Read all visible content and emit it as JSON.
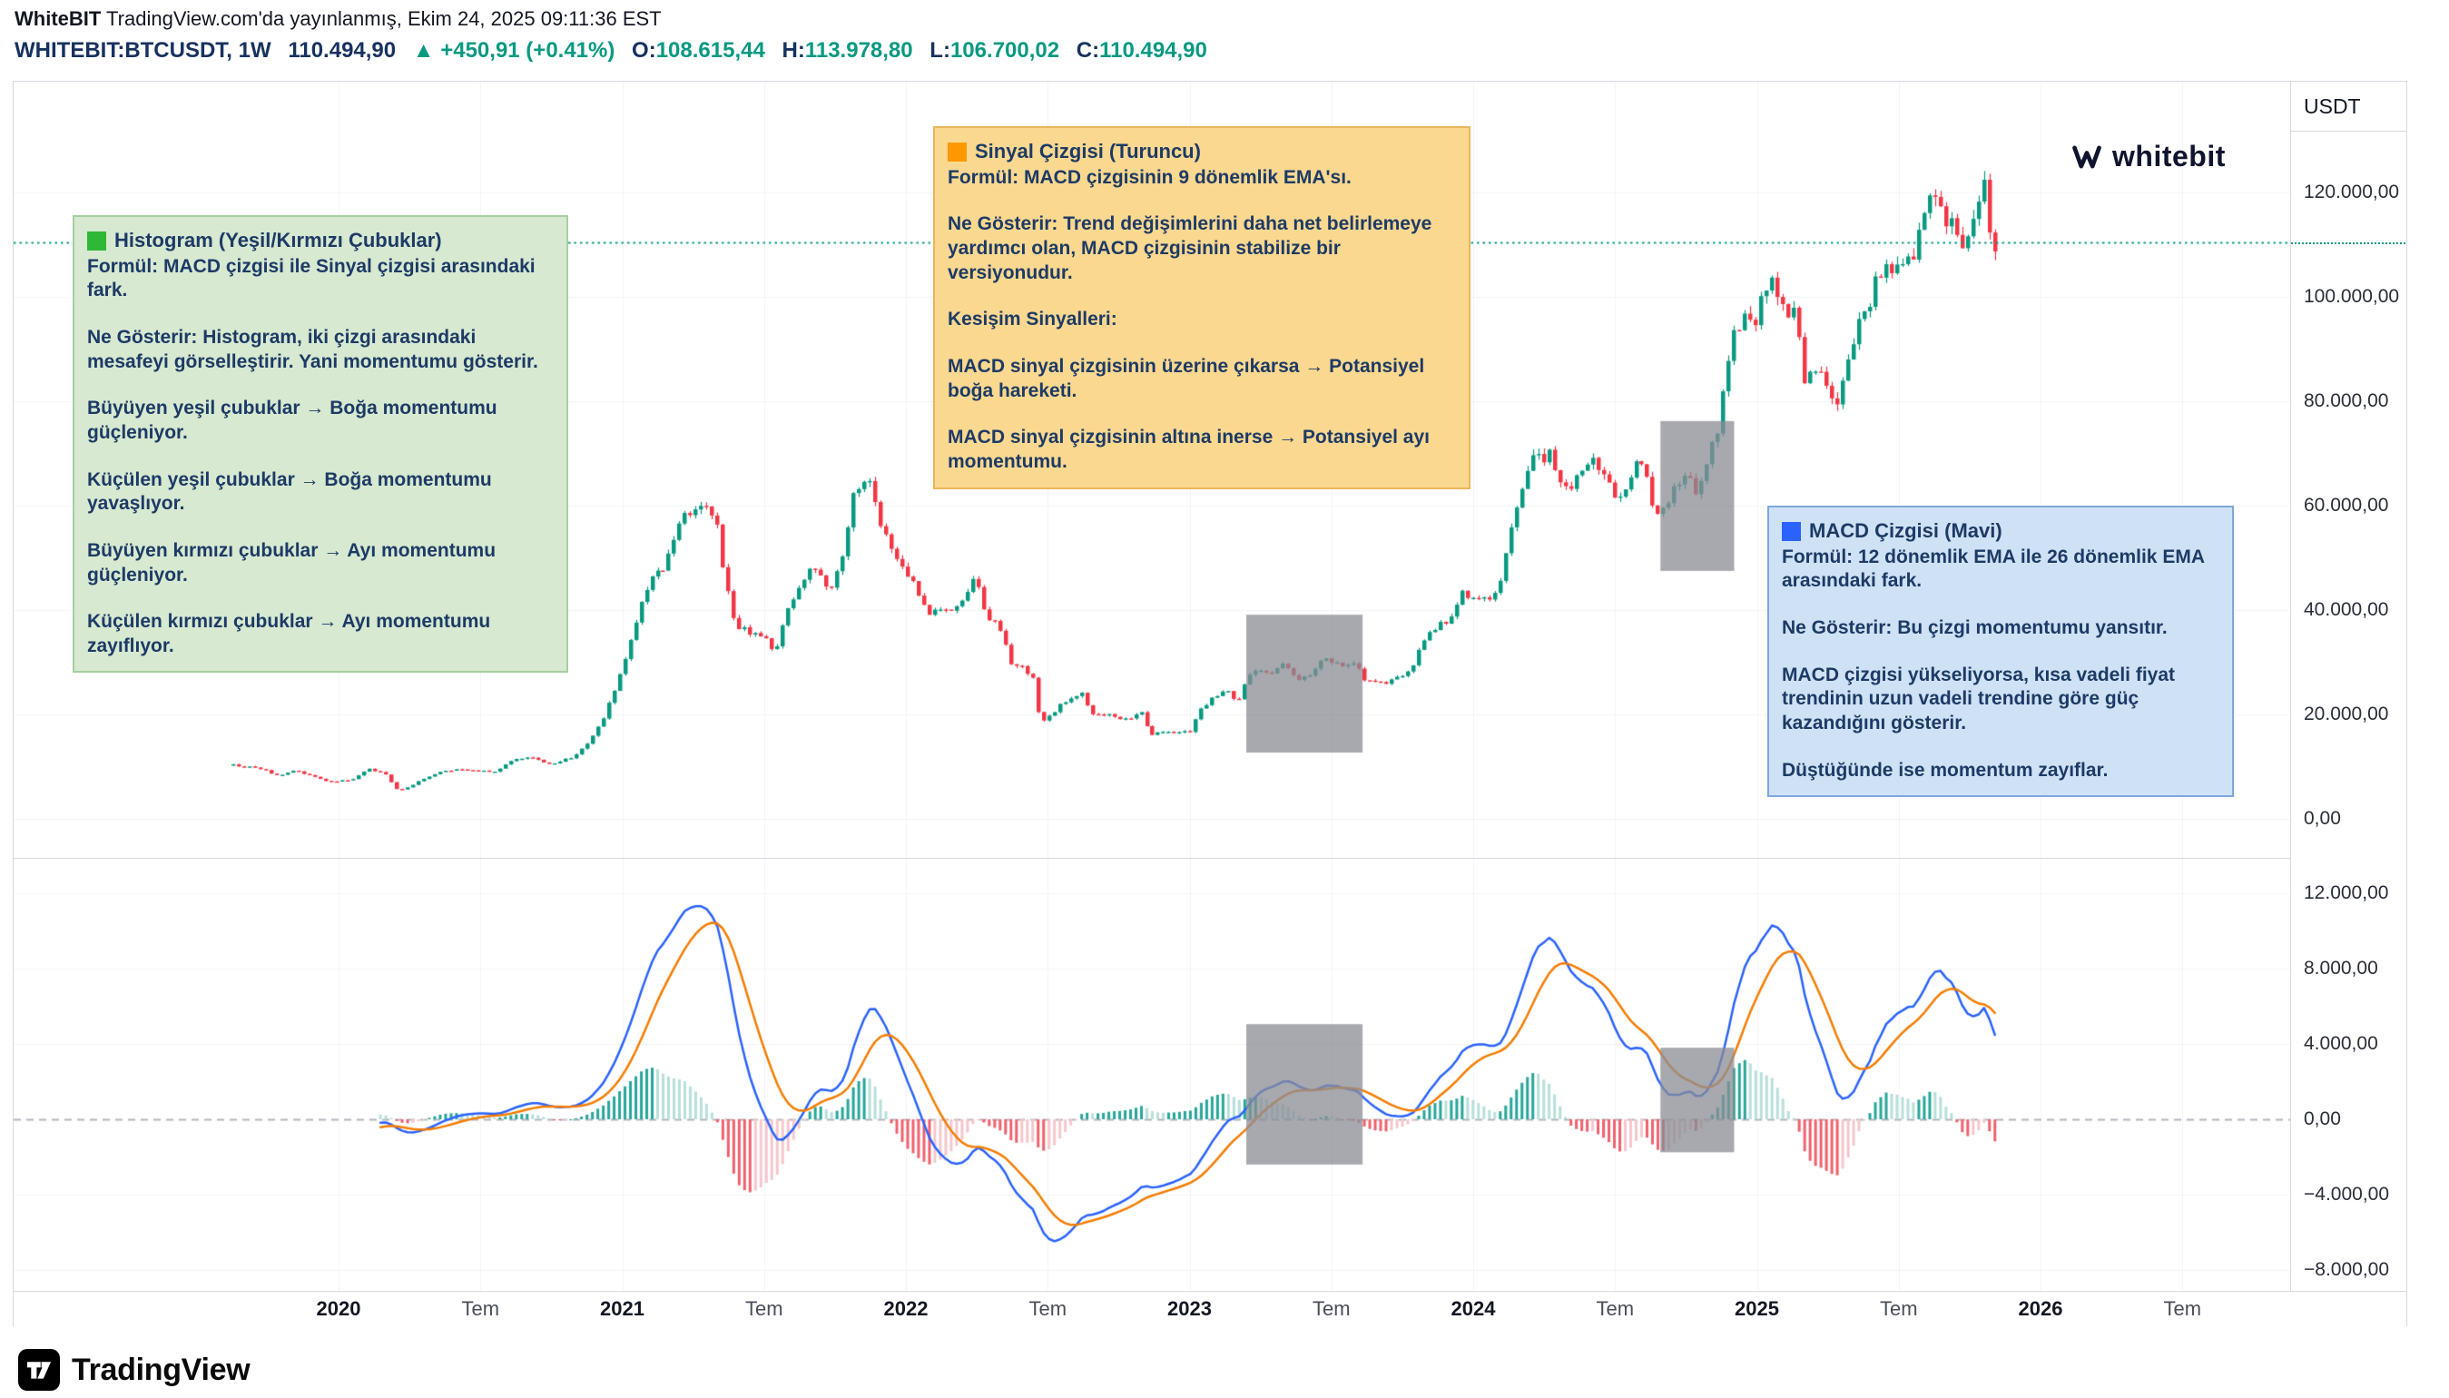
{
  "header": {
    "brand": "WhiteBIT",
    "published": "TradingView.com'da yayınlanmış, Ekim 24, 2025 09:11:36 EST",
    "symbol": "WHITEBIT:BTCUSDT, 1W",
    "last_price": "110.494,90",
    "change": "▲ +450,91 (+0.41%)",
    "ohlc": {
      "o_label": "O:",
      "o": "108.615,44",
      "h_label": "H:",
      "h": "113.978,80",
      "l_label": "L:",
      "l": "106.700,02",
      "c_label": "C:",
      "c": "110.494,90"
    }
  },
  "watermark": {
    "text": "whitebit"
  },
  "footer": {
    "logo_text": "TradingView"
  },
  "annotations": [
    {
      "id": "histogram",
      "square_color": "#2eb835",
      "bg": "#d7e9d0",
      "border": "#a6cf9f",
      "title": "Histogram (Yeşil/Kırmızı Çubuklar)",
      "paragraphs": [
        "Formül: MACD çizgisi ile Sinyal çizgisi arasındaki fark.",
        "Ne Gösterir: Histogram, iki çizgi arasındaki mesafeyi görselleştirir. Yani momentumu gösterir.",
        "Büyüyen yeşil çubuklar → Boğa momentumu güçleniyor.",
        "Küçülen yeşil çubuklar → Boğa momentumu yavaşlıyor.",
        "Büyüyen kırmızı çubuklar → Ayı momentumu güçleniyor.",
        "Küçülen kırmızı çubuklar → Ayı momentumu zayıflıyor."
      ]
    },
    {
      "id": "signal",
      "square_color": "#ff9800",
      "bg": "#fbd88f",
      "border": "#eab65a",
      "title": "Sinyal Çizgisi (Turuncu)",
      "paragraphs": [
        "Formül: MACD çizgisinin 9 dönemlik EMA'sı.",
        "Ne Gösterir: Trend değişimlerini daha net belirlemeye yardımcı olan, MACD çizgisinin stabilize bir versiyonudur.",
        "Kesişim Sinyalleri:",
        "MACD sinyal çizgisinin üzerine çıkarsa → Potansiyel boğa hareketi.",
        "MACD sinyal çizgisinin altına inerse → Potansiyel ayı momentumu."
      ]
    },
    {
      "id": "macd-line",
      "square_color": "#2962ff",
      "bg": "#cfe2f5",
      "border": "#7fa8dc",
      "title": "MACD Çizgisi (Mavi)",
      "paragraphs": [
        "Formül: 12 dönemlik EMA ile 26 dönemlik EMA arasındaki fark.",
        "Ne Gösterir: Bu çizgi momentumu yansıtır.",
        "MACD çizgisi yükseliyorsa, kısa vadeli fiyat trendinin uzun vadeli trendine göre güç kazandığını gösterir.",
        "Düştüğünde ise momentum zayıflar."
      ]
    }
  ],
  "chart_data": {
    "type": "candlestick",
    "symbol": "WHITEBIT:BTCUSDT",
    "timeframe": "1W",
    "indicator": "MACD",
    "macd_params": [
      12,
      26,
      9
    ],
    "x_domain": [
      2019.63,
      2026.88
    ],
    "x_ticks": [
      {
        "label": "2020",
        "t": 2020.0,
        "major": true
      },
      {
        "label": "Tem",
        "t": 2020.5,
        "major": false
      },
      {
        "label": "2021",
        "t": 2021.0,
        "major": true
      },
      {
        "label": "Tem",
        "t": 2021.5,
        "major": false
      },
      {
        "label": "2022",
        "t": 2022.0,
        "major": true
      },
      {
        "label": "Tem",
        "t": 2022.5,
        "major": false
      },
      {
        "label": "2023",
        "t": 2023.0,
        "major": true
      },
      {
        "label": "Tem",
        "t": 2023.5,
        "major": false
      },
      {
        "label": "2024",
        "t": 2024.0,
        "major": true
      },
      {
        "label": "Tem",
        "t": 2024.5,
        "major": false
      },
      {
        "label": "2025",
        "t": 2025.0,
        "major": true
      },
      {
        "label": "Tem",
        "t": 2025.5,
        "major": false
      },
      {
        "label": "2026",
        "t": 2026.0,
        "major": true
      },
      {
        "label": "Tem",
        "t": 2026.5,
        "major": false
      }
    ],
    "price_axis": {
      "unit": "USDT",
      "range": [
        0,
        131000
      ],
      "ticks": [
        0,
        20000,
        40000,
        60000,
        80000,
        100000,
        120000
      ],
      "tick_labels": [
        "0,00",
        "20.000,00",
        "40.000,00",
        "60.000,00",
        "80.000,00",
        "100.000,00",
        "120.000,00"
      ]
    },
    "macd_axis": {
      "range": [
        -9100,
        13600
      ],
      "ticks": [
        -8000,
        -4000,
        0,
        4000,
        8000,
        12000
      ],
      "tick_labels": [
        "−8.000,00",
        "−4.000,00",
        "0,00",
        "4.000,00",
        "8.000,00",
        "12.000,00"
      ]
    },
    "current_price": 110494.9,
    "series_start": 2019.63,
    "series_end": 2025.84,
    "noise_pct": 0.018,
    "weekly_anchors": [
      [
        2019.63,
        10300
      ],
      [
        2019.71,
        9900
      ],
      [
        2019.79,
        8300
      ],
      [
        2019.85,
        9200
      ],
      [
        2019.96,
        7200
      ],
      [
        2020.04,
        7300
      ],
      [
        2020.1,
        9500
      ],
      [
        2020.16,
        8900
      ],
      [
        2020.21,
        5300
      ],
      [
        2020.27,
        6800
      ],
      [
        2020.35,
        8800
      ],
      [
        2020.42,
        9600
      ],
      [
        2020.5,
        9100
      ],
      [
        2020.56,
        9200
      ],
      [
        2020.62,
        11700
      ],
      [
        2020.69,
        11500
      ],
      [
        2020.75,
        10500
      ],
      [
        2020.81,
        11500
      ],
      [
        2020.87,
        13800
      ],
      [
        2020.93,
        18700
      ],
      [
        2021.0,
        29000
      ],
      [
        2021.05,
        38000
      ],
      [
        2021.1,
        47000
      ],
      [
        2021.15,
        48500
      ],
      [
        2021.2,
        57000
      ],
      [
        2021.25,
        58800
      ],
      [
        2021.3,
        59000
      ],
      [
        2021.33,
        57700
      ],
      [
        2021.36,
        46000
      ],
      [
        2021.4,
        37300
      ],
      [
        2021.45,
        35600
      ],
      [
        2021.5,
        34700
      ],
      [
        2021.54,
        31800
      ],
      [
        2021.58,
        39800
      ],
      [
        2021.63,
        45600
      ],
      [
        2021.67,
        48800
      ],
      [
        2021.7,
        47100
      ],
      [
        2021.73,
        43800
      ],
      [
        2021.77,
        48200
      ],
      [
        2021.81,
        61300
      ],
      [
        2021.85,
        65000
      ],
      [
        2021.87,
        65500
      ],
      [
        2021.9,
        57700
      ],
      [
        2021.95,
        50800
      ],
      [
        2022.0,
        47700
      ],
      [
        2022.04,
        43100
      ],
      [
        2022.08,
        38500
      ],
      [
        2022.12,
        40100
      ],
      [
        2022.16,
        39400
      ],
      [
        2022.2,
        42200
      ],
      [
        2022.24,
        46300
      ],
      [
        2022.28,
        39700
      ],
      [
        2022.33,
        36000
      ],
      [
        2022.37,
        30100
      ],
      [
        2022.41,
        29400
      ],
      [
        2022.45,
        26700
      ],
      [
        2022.47,
        19000
      ],
      [
        2022.5,
        19200
      ],
      [
        2022.54,
        21600
      ],
      [
        2022.58,
        23300
      ],
      [
        2022.62,
        23800
      ],
      [
        2022.66,
        20000
      ],
      [
        2022.71,
        19800
      ],
      [
        2022.75,
        19400
      ],
      [
        2022.79,
        19200
      ],
      [
        2022.83,
        20500
      ],
      [
        2022.86,
        16300
      ],
      [
        2022.91,
        16500
      ],
      [
        2022.96,
        16800
      ],
      [
        2023.0,
        16600
      ],
      [
        2023.04,
        20900
      ],
      [
        2023.09,
        23300
      ],
      [
        2023.13,
        24600
      ],
      [
        2023.17,
        22400
      ],
      [
        2023.21,
        27500
      ],
      [
        2023.25,
        28500
      ],
      [
        2023.29,
        28000
      ],
      [
        2023.33,
        29300
      ],
      [
        2023.38,
        26900
      ],
      [
        2023.42,
        27100
      ],
      [
        2023.46,
        30500
      ],
      [
        2023.5,
        30300
      ],
      [
        2023.54,
        29200
      ],
      [
        2023.58,
        29400
      ],
      [
        2023.63,
        26100
      ],
      [
        2023.67,
        25900
      ],
      [
        2023.71,
        26600
      ],
      [
        2023.75,
        27000
      ],
      [
        2023.79,
        29900
      ],
      [
        2023.83,
        34700
      ],
      [
        2023.88,
        37400
      ],
      [
        2023.92,
        37800
      ],
      [
        2023.96,
        43000
      ],
      [
        2024.0,
        42600
      ],
      [
        2024.04,
        41700
      ],
      [
        2024.08,
        43100
      ],
      [
        2024.12,
        51700
      ],
      [
        2024.16,
        62500
      ],
      [
        2024.2,
        68300
      ],
      [
        2024.23,
        69400
      ],
      [
        2024.27,
        69600
      ],
      [
        2024.31,
        63800
      ],
      [
        2024.35,
        64000
      ],
      [
        2024.38,
        67800
      ],
      [
        2024.42,
        69000
      ],
      [
        2024.46,
        66200
      ],
      [
        2024.5,
        60900
      ],
      [
        2024.54,
        63700
      ],
      [
        2024.58,
        68200
      ],
      [
        2024.61,
        67100
      ],
      [
        2024.64,
        58400
      ],
      [
        2024.67,
        59100
      ],
      [
        2024.71,
        63600
      ],
      [
        2024.75,
        65800
      ],
      [
        2024.79,
        62800
      ],
      [
        2024.83,
        69000
      ],
      [
        2024.86,
        74000
      ],
      [
        2024.89,
        85000
      ],
      [
        2024.92,
        93500
      ],
      [
        2024.96,
        95500
      ],
      [
        2025.0,
        96000
      ],
      [
        2025.03,
        102600
      ],
      [
        2025.07,
        102000
      ],
      [
        2025.1,
        96600
      ],
      [
        2025.14,
        96100
      ],
      [
        2025.17,
        84400
      ],
      [
        2025.21,
        86100
      ],
      [
        2025.25,
        82600
      ],
      [
        2025.28,
        78400
      ],
      [
        2025.31,
        83800
      ],
      [
        2025.35,
        94200
      ],
      [
        2025.38,
        95900
      ],
      [
        2025.42,
        104000
      ],
      [
        2025.45,
        106500
      ],
      [
        2025.48,
        104600
      ],
      [
        2025.52,
        108200
      ],
      [
        2025.55,
        108000
      ],
      [
        2025.58,
        117400
      ],
      [
        2025.62,
        119000
      ],
      [
        2025.65,
        115800
      ],
      [
        2025.69,
        113500
      ],
      [
        2025.72,
        109200
      ],
      [
        2025.75,
        112900
      ],
      [
        2025.78,
        115900
      ],
      [
        2025.8,
        122500
      ],
      [
        2025.82,
        111500
      ],
      [
        2025.84,
        110500
      ]
    ],
    "highlight_boxes": [
      {
        "panel": "price",
        "t0": 2023.2,
        "t1": 2023.61,
        "lo": 12700,
        "hi": 39100
      },
      {
        "panel": "price",
        "t0": 2024.66,
        "t1": 2024.92,
        "lo": 47500,
        "hi": 76200
      },
      {
        "panel": "macd",
        "t0": 2023.2,
        "t1": 2023.61,
        "lo": -2400,
        "hi": 5050
      },
      {
        "panel": "macd",
        "t0": 2024.66,
        "t1": 2024.92,
        "lo": -1750,
        "hi": 3800
      }
    ],
    "colors": {
      "up": "#089981",
      "down": "#f23645",
      "macd_line": "#2962ff",
      "signal_line": "#f57c00",
      "hist_pos_strong": "#26a69a",
      "hist_pos_weak": "#b7dfda",
      "hist_neg_strong": "#f0616d",
      "hist_neg_weak": "#f5c6cb",
      "current_price_line": "#089981",
      "zero_line": "#b2b5be",
      "highlight_fill": "rgba(137,140,148,0.75)",
      "grid": "#f1f3f8"
    }
  }
}
